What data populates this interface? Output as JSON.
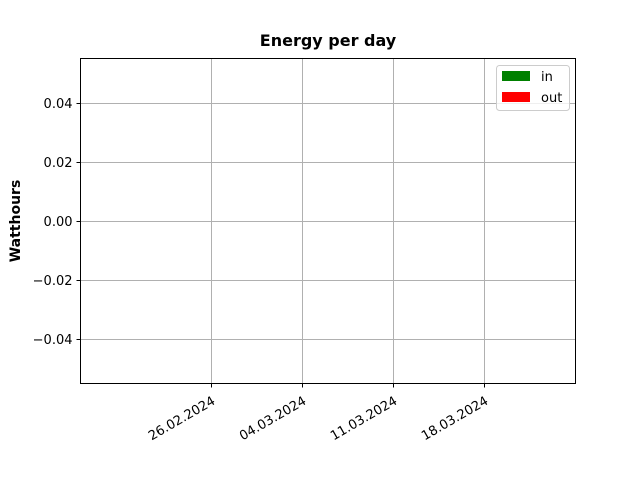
{
  "chart_data": {
    "type": "bar",
    "title": "Energy per day",
    "xlabel": "",
    "ylabel": "Watthours",
    "x_ticks": [
      "26.02.2024",
      "04.03.2024",
      "11.03.2024",
      "18.03.2024"
    ],
    "x_range": [
      "2024-02-16",
      "2024-03-25"
    ],
    "ylim": [
      -0.055,
      0.055
    ],
    "y_ticks": [
      0.04,
      0.02,
      0.0,
      -0.02,
      -0.04
    ],
    "y_tick_labels": [
      "0.04",
      "0.02",
      "0.00",
      "−0.02",
      "−0.04"
    ],
    "grid": true,
    "legend_position": "top-right",
    "series": [
      {
        "name": "in",
        "color": "#008000",
        "values": []
      },
      {
        "name": "out",
        "color": "#ff0000",
        "values": []
      }
    ]
  }
}
